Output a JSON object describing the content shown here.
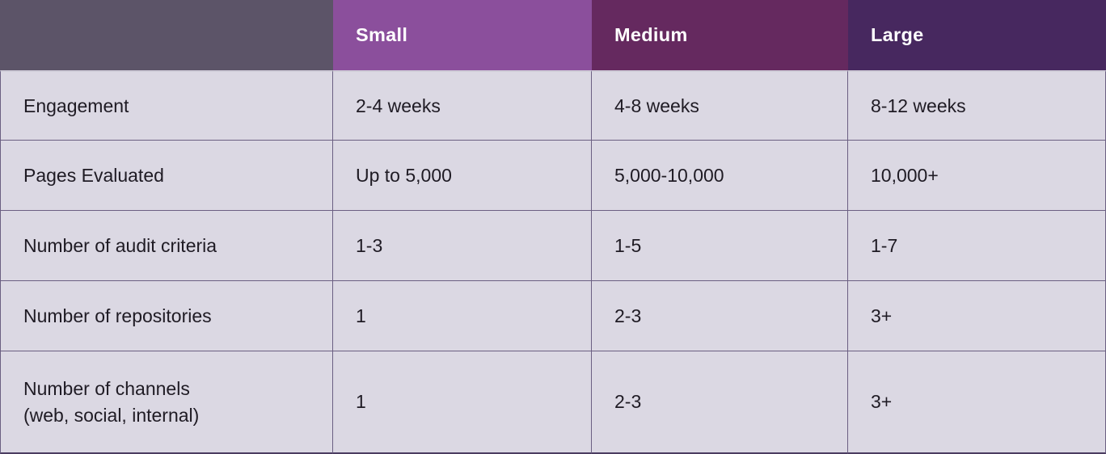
{
  "chart_data": {
    "type": "table",
    "title": "",
    "columns": [
      "",
      "Small",
      "Medium",
      "Large"
    ],
    "rows": [
      [
        "Engagement",
        "2-4 weeks",
        "4-8 weeks",
        "8-12 weeks"
      ],
      [
        "Pages Evaluated",
        "Up to 5,000",
        "5,000-10,000",
        "10,000+"
      ],
      [
        "Number of audit criteria",
        "1-3",
        "1-5",
        "1-7"
      ],
      [
        "Number of repositories",
        "1",
        "2-3",
        "3+"
      ],
      [
        "Number of channels (web, social, internal)",
        "1",
        "2-3",
        "3+"
      ]
    ]
  },
  "table": {
    "header": [
      "",
      "Small",
      "Medium",
      "Large"
    ],
    "rows": [
      {
        "label_lines": [
          "Engagement"
        ],
        "values": [
          "2-4 weeks",
          "4-8 weeks",
          "8-12 weeks"
        ]
      },
      {
        "label_lines": [
          "Pages Evaluated"
        ],
        "values": [
          "Up to 5,000",
          "5,000-10,000",
          "10,000+"
        ]
      },
      {
        "label_lines": [
          "Number of audit criteria"
        ],
        "values": [
          "1-3",
          "1-5",
          "1-7"
        ]
      },
      {
        "label_lines": [
          "Number of repositories"
        ],
        "values": [
          "1",
          "2-3",
          "3+"
        ]
      },
      {
        "label_lines": [
          "Number of channels",
          "(web, social, internal)"
        ],
        "values": [
          "1",
          "2-3",
          "3+"
        ]
      }
    ]
  },
  "colors": {
    "header-blank-bg": "#5c5468",
    "header-small-bg": "#8b4f9c",
    "header-medium-bg": "#65295f",
    "header-large-bg": "#47285f",
    "header-text": "#ffffff",
    "cell-bg": "#dbd8e3",
    "body-text": "#1f1b24",
    "border": "#6b5f82",
    "header-divider": "#cfccd8",
    "bottom-border": "#4b3d61"
  }
}
